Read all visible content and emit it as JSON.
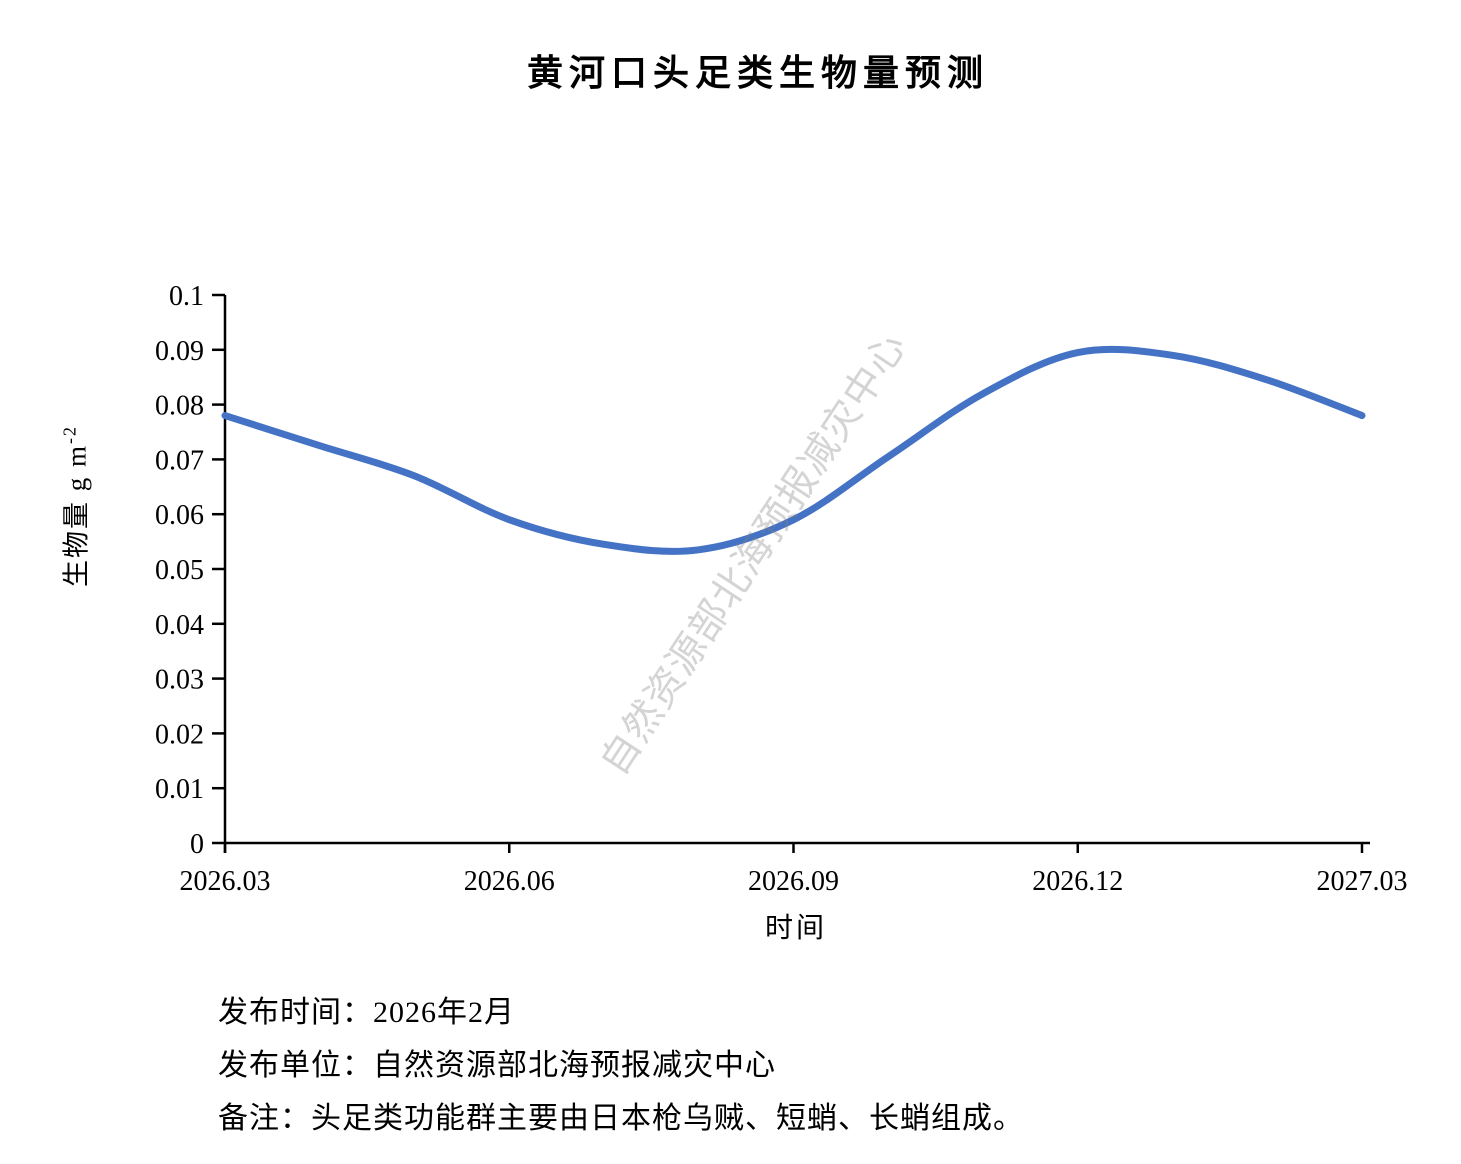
{
  "title": "黄河口头足类生物量预测",
  "watermark": "自然资源部北海预报减灾中心",
  "y_axis_title": {
    "text": "生物量 g m",
    "sup": "-2"
  },
  "x_axis_title": "时间",
  "footer": {
    "release_date": "发布时间：2026年2月",
    "release_org": "发布单位：自然资源部北海预报减灾中心",
    "note": "备注：头足类功能群主要由日本枪乌贼、短蛸、长蛸组成。"
  },
  "colors": {
    "line": "#4472C4",
    "axis": "#000000",
    "text": "#000000",
    "watermark_gray": "#d5d5d5"
  },
  "chart_data": {
    "type": "line",
    "title": "黄河口头足类生物量预测",
    "xlabel": "时间",
    "ylabel": "生物量 g m-2",
    "x": [
      "2026.03",
      "2026.04",
      "2026.05",
      "2026.06",
      "2026.07",
      "2026.08",
      "2026.09",
      "2026.10",
      "2026.11",
      "2026.12",
      "2027.01",
      "2027.02",
      "2027.03"
    ],
    "values": [
      0.078,
      0.0725,
      0.067,
      0.059,
      0.0545,
      0.0535,
      0.059,
      0.0705,
      0.082,
      0.0895,
      0.089,
      0.0845,
      0.078
    ],
    "ylim": [
      0,
      0.1
    ],
    "y_tick_step": 0.01,
    "y_tick_labels": [
      "0",
      "0.01",
      "0.02",
      "0.03",
      "0.04",
      "0.05",
      "0.06",
      "0.07",
      "0.08",
      "0.09",
      "0.1"
    ],
    "x_axis_tick_labels": [
      "2026.03",
      "2026.06",
      "2026.09",
      "2026.12",
      "2027.03"
    ],
    "grid": false,
    "legend": "none",
    "smooth": true
  }
}
